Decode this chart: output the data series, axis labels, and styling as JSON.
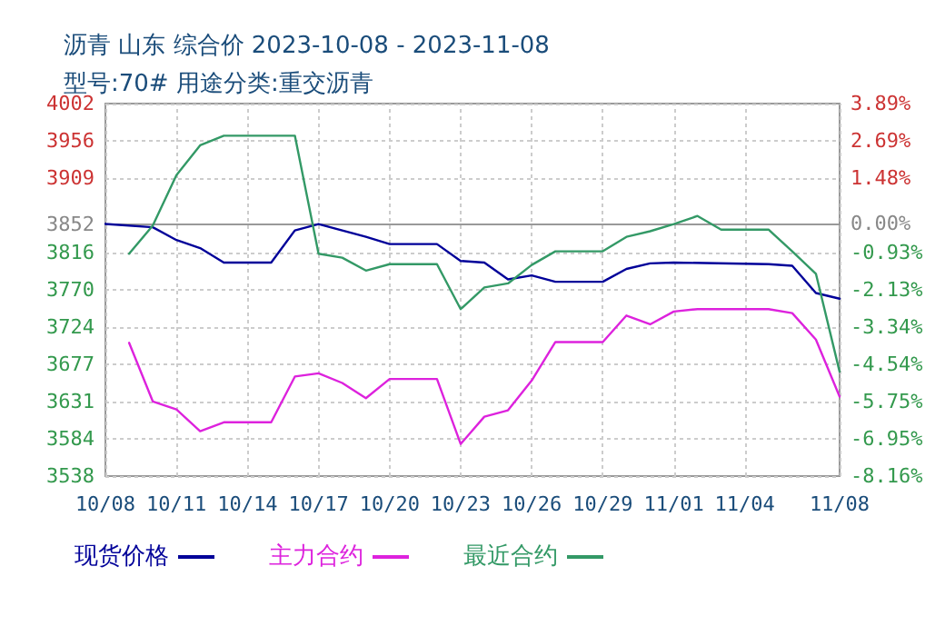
{
  "chart_data": {
    "type": "line",
    "title": "沥青 山东 综合价 2023-10-08 - 2023-11-08",
    "subtitle": "型号:70# 用途分类:重交沥青",
    "series": [
      {
        "name": "现货价格",
        "color": "#000099",
        "x": [
          "2023-10-08",
          "2023-10-10",
          "2023-10-11",
          "2023-10-12",
          "2023-10-13",
          "2023-10-15",
          "2023-10-16",
          "2023-10-17",
          "2023-10-19",
          "2023-10-20",
          "2023-10-22",
          "2023-10-23",
          "2023-10-24",
          "2023-10-25",
          "2023-10-26",
          "2023-10-27",
          "2023-10-29",
          "2023-10-30",
          "2023-10-31",
          "2023-11-01",
          "2023-11-05",
          "2023-11-06",
          "2023-11-07",
          "2023-11-08"
        ],
        "values": [
          3852,
          3848,
          3832,
          3822,
          3804,
          3804,
          3844,
          3852,
          3836,
          3827,
          3827,
          3806,
          3804,
          3783,
          3788,
          3780,
          3780,
          3796,
          3803,
          3804,
          3802,
          3800,
          3766,
          3759
        ]
      },
      {
        "name": "主力合约",
        "color": "#dd22dd",
        "x": [
          "2023-10-09",
          "2023-10-10",
          "2023-10-11",
          "2023-10-12",
          "2023-10-13",
          "2023-10-15",
          "2023-10-16",
          "2023-10-17",
          "2023-10-18",
          "2023-10-19",
          "2023-10-20",
          "2023-10-22",
          "2023-10-23",
          "2023-10-24",
          "2023-10-25",
          "2023-10-26",
          "2023-10-27",
          "2023-10-29",
          "2023-10-30",
          "2023-10-31",
          "2023-11-01",
          "2023-11-02",
          "2023-11-05",
          "2023-11-06",
          "2023-11-07",
          "2023-11-08"
        ],
        "values": [
          3704,
          3631,
          3621,
          3594,
          3605,
          3605,
          3662,
          3666,
          3654,
          3635,
          3659,
          3659,
          3578,
          3612,
          3620,
          3657,
          3705,
          3705,
          3738,
          3727,
          3743,
          3746,
          3746,
          3741,
          3708,
          3637
        ]
      },
      {
        "name": "最近合约",
        "color": "#339966",
        "x": [
          "2023-10-09",
          "2023-10-10",
          "2023-10-11",
          "2023-10-12",
          "2023-10-13",
          "2023-10-16",
          "2023-10-17",
          "2023-10-18",
          "2023-10-19",
          "2023-10-20",
          "2023-10-22",
          "2023-10-23",
          "2023-10-24",
          "2023-10-25",
          "2023-10-26",
          "2023-10-27",
          "2023-10-29",
          "2023-10-30",
          "2023-10-31",
          "2023-11-01",
          "2023-11-02",
          "2023-11-03",
          "2023-11-05",
          "2023-11-06",
          "2023-11-07",
          "2023-11-08"
        ],
        "values": [
          3815,
          3850,
          3913,
          3950,
          3962,
          3962,
          3815,
          3810,
          3794,
          3802,
          3802,
          3746,
          3773,
          3778,
          3801,
          3818,
          3818,
          3836,
          3843,
          3852,
          3862,
          3845,
          3845,
          3818,
          3790,
          3668
        ]
      }
    ],
    "xlim": [
      "2023-10-08",
      "2023-11-08"
    ],
    "xticks": [
      {
        "value": "2023-10-08",
        "label": "10/08"
      },
      {
        "value": "2023-10-11",
        "label": "10/11"
      },
      {
        "value": "2023-10-14",
        "label": "10/14"
      },
      {
        "value": "2023-10-17",
        "label": "10/17"
      },
      {
        "value": "2023-10-20",
        "label": "10/20"
      },
      {
        "value": "2023-10-23",
        "label": "10/23"
      },
      {
        "value": "2023-10-26",
        "label": "10/26"
      },
      {
        "value": "2023-10-29",
        "label": "10/29"
      },
      {
        "value": "2023-11-01",
        "label": "11/01"
      },
      {
        "value": "2023-11-04",
        "label": "11/04"
      },
      {
        "value": "2023-11-08",
        "label": "11/08"
      }
    ],
    "ylim": [
      3538,
      4002
    ],
    "yticks": [
      3538,
      3584,
      3631,
      3677,
      3724,
      3770,
      3816,
      3852,
      3909,
      3956,
      4002
    ],
    "y2lim": [
      -8.16,
      3.89
    ],
    "y2ticks": [
      {
        "value": -8.16,
        "label": "-8.16%"
      },
      {
        "value": -6.95,
        "label": "-6.95%"
      },
      {
        "value": -5.75,
        "label": "-5.75%"
      },
      {
        "value": -4.54,
        "label": "-4.54%"
      },
      {
        "value": -3.34,
        "label": "-3.34%"
      },
      {
        "value": -2.13,
        "label": "-2.13%"
      },
      {
        "value": -0.93,
        "label": "-0.93%"
      },
      {
        "value": 0,
        "label": "0.00%"
      },
      {
        "value": 1.48,
        "label": "1.48%"
      },
      {
        "value": 2.69,
        "label": "2.69%"
      },
      {
        "value": 3.89,
        "label": "3.89%"
      }
    ],
    "ref_lines": [
      {
        "axis": "y",
        "value": 3852,
        "color": "#999999"
      }
    ],
    "grid": true,
    "legend": "bottom",
    "marker": "none",
    "line_style": "solid"
  }
}
